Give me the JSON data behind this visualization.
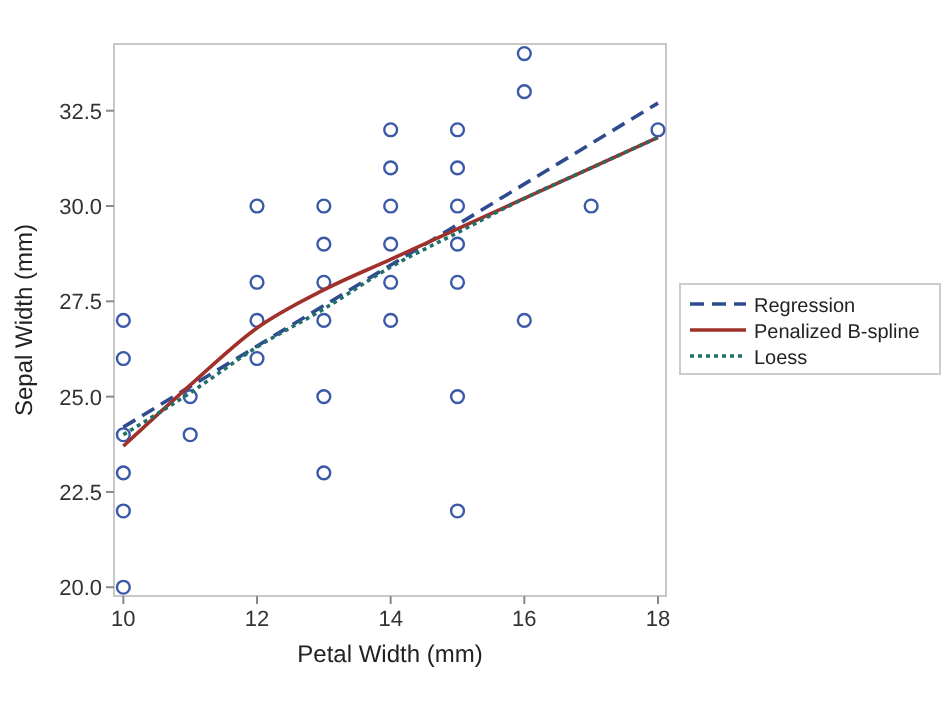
{
  "chart_data": {
    "type": "scatter",
    "xlabel": "Petal Width (mm)",
    "ylabel": "Sepal Width (mm)",
    "xlim": [
      9.86,
      18.12
    ],
    "ylim": [
      19.77,
      34.25
    ],
    "xticks": [
      10,
      12,
      14,
      16,
      18
    ],
    "yticks": [
      {
        "value": 20,
        "label": "20.0"
      },
      22.5,
      {
        "value": 25,
        "label": "25.0"
      },
      27.5,
      {
        "value": 30,
        "label": "30.0"
      },
      32.5
    ],
    "legend": "right",
    "grid": false,
    "series": [
      {
        "color": "#3a5aa8",
        "marker": "circle",
        "x": [
          10,
          10,
          10,
          10,
          10,
          10,
          11,
          11,
          12,
          12,
          12,
          12,
          13,
          13,
          13,
          13,
          13,
          13,
          14,
          14,
          14,
          14,
          14,
          14,
          15,
          15,
          15,
          15,
          15,
          15,
          15,
          16,
          16,
          16,
          17,
          18
        ],
        "values": [
          27,
          26,
          24,
          23,
          22,
          20,
          25,
          24,
          30,
          28,
          27,
          26,
          30,
          29,
          28,
          27,
          25,
          23,
          32,
          31,
          30,
          29,
          28,
          27,
          32,
          31,
          30,
          29,
          28,
          25,
          22,
          34,
          33,
          27,
          30,
          32
        ]
      },
      {
        "type": "line",
        "name": "Regression",
        "color": "#2f4b8f",
        "line_style": "dashed",
        "marker": "none",
        "x": [
          10,
          18
        ],
        "values": [
          24.2,
          32.7
        ]
      },
      {
        "type": "line",
        "name": "Penalized B-spline",
        "color": "#a0302a",
        "line_style": "solid",
        "marker": "none",
        "x": [
          10,
          11,
          12,
          13,
          14,
          15,
          16,
          17,
          18
        ],
        "values": [
          23.7,
          25.3,
          26.8,
          27.8,
          28.6,
          29.4,
          30.2,
          31.0,
          31.8
        ]
      },
      {
        "type": "line",
        "name": "Loess",
        "color": "#1f6f6a",
        "line_style": "dotted",
        "marker": "none",
        "x": [
          10,
          11,
          12,
          13,
          14,
          15,
          16,
          17,
          18
        ],
        "values": [
          24.0,
          25.1,
          26.3,
          27.3,
          28.4,
          29.3,
          30.2,
          31.0,
          31.8
        ]
      }
    ]
  }
}
